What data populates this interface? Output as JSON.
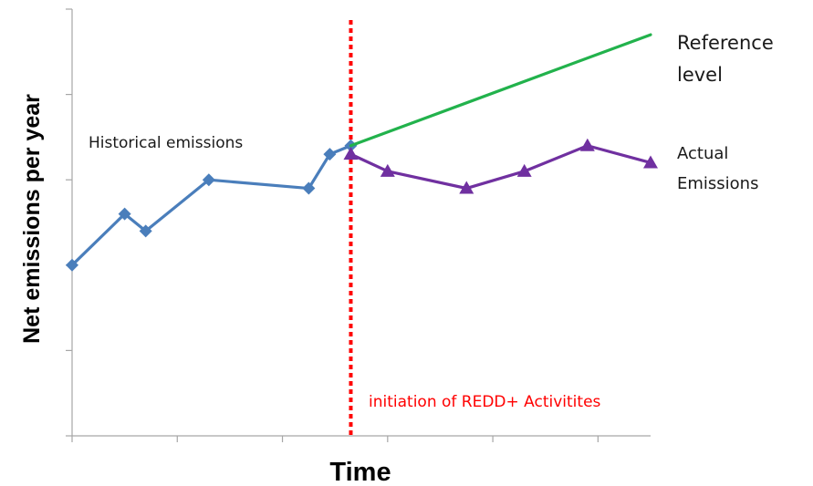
{
  "chart_data": {
    "type": "line",
    "xlabel": "Time",
    "ylabel": "Net emissions per year",
    "xlim": [
      0,
      11
    ],
    "ylim": [
      0,
      5
    ],
    "grid": false,
    "series": [
      {
        "key": "historical",
        "color": "#4a7ebb",
        "marker": "diamond",
        "x": [
          0,
          1.0,
          1.4,
          2.6,
          4.5,
          4.9,
          5.3
        ],
        "y": [
          2.0,
          2.6,
          2.4,
          3.0,
          2.9,
          3.3,
          3.4
        ]
      },
      {
        "key": "reference",
        "color": "#22b24c",
        "marker": "none",
        "x": [
          5.3,
          11
        ],
        "y": [
          3.4,
          4.7
        ]
      },
      {
        "key": "actual",
        "color": "#7030a0",
        "marker": "triangle",
        "x": [
          5.3,
          6.0,
          7.5,
          8.6,
          9.8,
          11
        ],
        "y": [
          3.3,
          3.1,
          2.9,
          3.1,
          3.4,
          3.2
        ]
      }
    ],
    "intervention": {
      "x": 5.3,
      "color": "#ff0000",
      "label": "initiation of REDD+ Activitites"
    },
    "annotations": {
      "historical": "Historical emissions",
      "reference": [
        "Reference",
        "level"
      ],
      "actual": [
        "Actual",
        "Emissions"
      ]
    }
  }
}
